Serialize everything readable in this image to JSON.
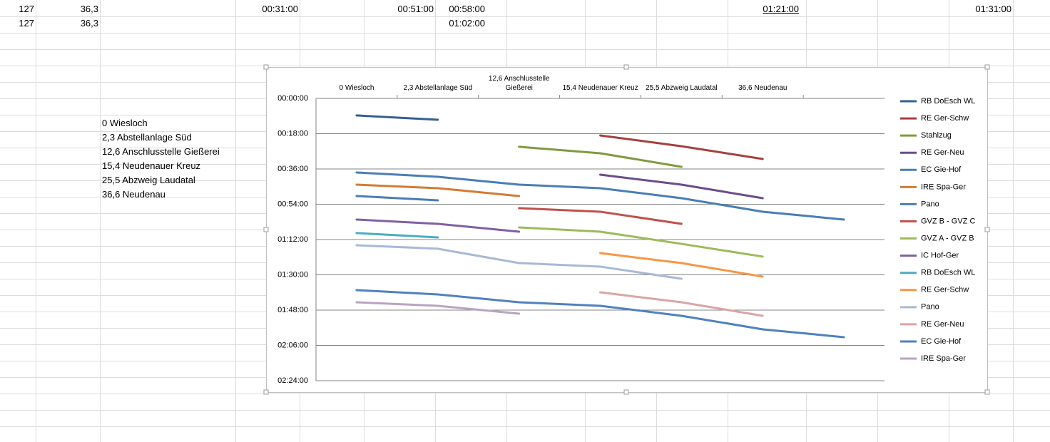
{
  "sheet": {
    "row1": [
      "127",
      "36,3",
      "00:31:00",
      "00:51:00",
      "00:58:00",
      "01:21:00",
      "01:31:00"
    ],
    "row2": [
      "127",
      "36,3",
      "01:02:00"
    ],
    "stations": [
      "0 Wiesloch",
      "2,3 Abstellanlage Süd",
      "12,6 Anschlusstelle Gießerei",
      "15,4 Neudenauer Kreuz",
      "25,5 Abzweig Laudatal",
      "36,6 Neudenau"
    ]
  },
  "chart_data": {
    "type": "line",
    "categories": [
      "0 Wiesloch",
      "2,3 Abstellanlage Süd",
      "12,6 Anschlusstelle Gießerei",
      "15,4 Neudenauer Kreuz",
      "25,5 Abzweig Laudatal",
      "36,6 Neudenau",
      null
    ],
    "ylim": [
      0,
      144
    ],
    "y_reversed": true,
    "x_axis_position": "top",
    "grid": true,
    "legend": "right",
    "yticks": [
      {
        "value": 0,
        "label": "00:00:00"
      },
      {
        "value": 18,
        "label": "00:18:00"
      },
      {
        "value": 36,
        "label": "00:36:00"
      },
      {
        "value": 54,
        "label": "00:54:00"
      },
      {
        "value": 72,
        "label": "01:12:00"
      },
      {
        "value": 90,
        "label": "01:30:00"
      },
      {
        "value": 108,
        "label": "01:48:00"
      },
      {
        "value": 126,
        "label": "02:06:00"
      },
      {
        "value": 144,
        "label": "02:24:00"
      }
    ],
    "series": [
      {
        "name": "RB DoEsch WL",
        "color": "#35608f",
        "values": [
          8.7,
          10.9,
          null,
          null,
          null,
          null,
          null
        ]
      },
      {
        "name": "RE Ger-Schw",
        "color": "#a5403c",
        "values": [
          null,
          null,
          null,
          18.9,
          24.4,
          30.9,
          null
        ]
      },
      {
        "name": "Stahlzug",
        "color": "#7f9a3e",
        "values": [
          null,
          null,
          24.7,
          28,
          34.9,
          null,
          null
        ]
      },
      {
        "name": "RE Ger-Neu",
        "color": "#6b4c8b",
        "values": [
          null,
          null,
          null,
          38.9,
          44,
          50.9,
          null
        ]
      },
      {
        "name": "EC Gie-Hof",
        "color": "#4a7db5",
        "values": [
          37.8,
          40,
          44,
          45.8,
          50.9,
          57.8,
          61.8
        ]
      },
      {
        "name": "IRE Spa-Ger",
        "color": "#d17b35",
        "values": [
          44,
          45.8,
          49.8,
          null,
          null,
          null,
          null
        ]
      },
      {
        "name": "Pano",
        "color": "#4a7db5",
        "values": [
          49.8,
          52,
          null,
          null,
          null,
          null,
          null
        ]
      },
      {
        "name": "GVZ B - GVZ C",
        "color": "#c0504d",
        "values": [
          null,
          null,
          56,
          57.8,
          64,
          null,
          null
        ]
      },
      {
        "name": "GVZ A - GVZ B",
        "color": "#9bbb59",
        "values": [
          null,
          null,
          65.8,
          68,
          74.2,
          80.7,
          null
        ]
      },
      {
        "name": "IC Hof-Ger",
        "color": "#7f60a0",
        "values": [
          61.8,
          64,
          68,
          null,
          null,
          null,
          null
        ]
      },
      {
        "name": "RB DoEsch WL",
        "color": "#4bacc6",
        "values": [
          68.7,
          70.9,
          null,
          null,
          null,
          null,
          null
        ]
      },
      {
        "name": "RE Ger-Schw",
        "color": "#f79646",
        "values": [
          null,
          null,
          null,
          78.9,
          84,
          90.9,
          null
        ]
      },
      {
        "name": "Pano",
        "color": "#a8b9d6",
        "values": [
          74.9,
          76.7,
          84,
          85.8,
          92,
          null,
          null
        ]
      },
      {
        "name": "RE Ger-Neu",
        "color": "#d9a5a3",
        "values": [
          null,
          null,
          null,
          98.9,
          104,
          110.9,
          null
        ]
      },
      {
        "name": "EC Gie-Hof",
        "color": "#4f81bd",
        "values": [
          97.8,
          100,
          104,
          105.8,
          110.9,
          117.8,
          121.8
        ]
      },
      {
        "name": "IRE Spa-Ger",
        "color": "#b9a3c4",
        "values": [
          104,
          105.8,
          109.8,
          null,
          null,
          null,
          null
        ]
      }
    ]
  }
}
